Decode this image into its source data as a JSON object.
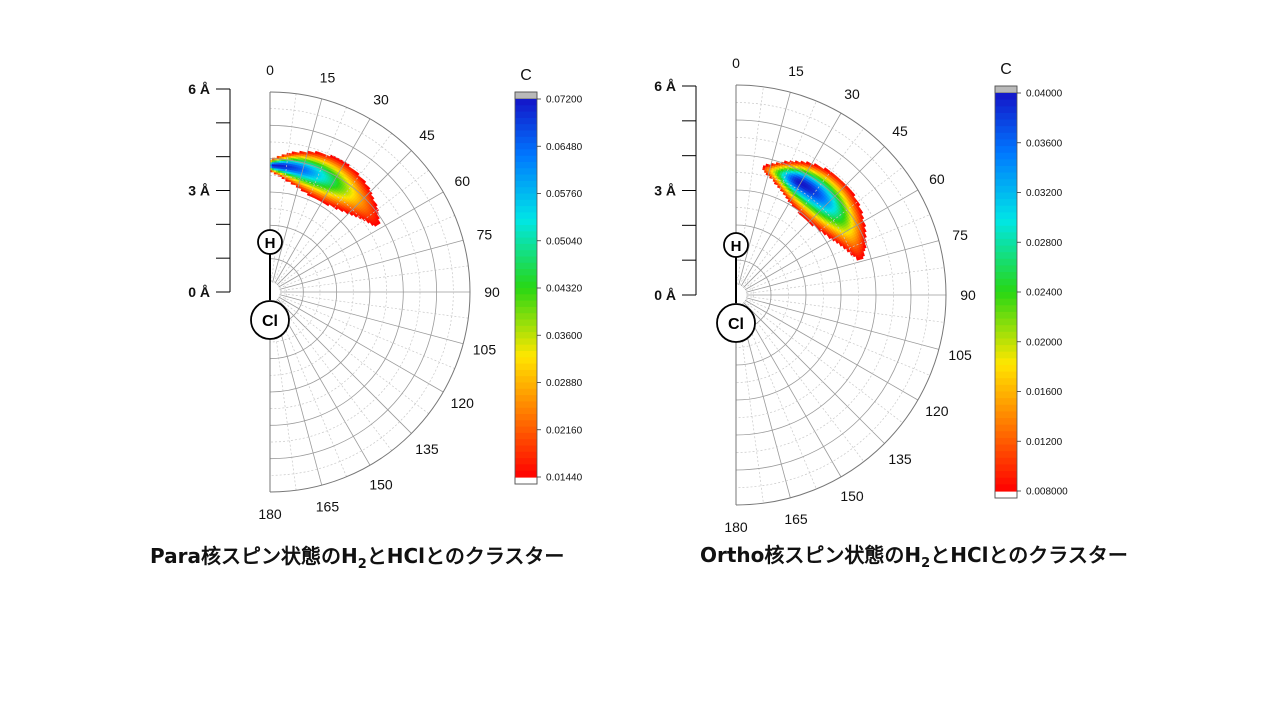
{
  "chart_data": [
    {
      "type": "heatmap",
      "subtype": "polar-contour",
      "caption": {
        "pre": "Para核スピン状態のH",
        "sub": "2",
        "post": "とHClとのクラスター"
      },
      "angle_ticks": [
        "0",
        "15",
        "30",
        "45",
        "60",
        "75",
        "90",
        "105",
        "120",
        "135",
        "150",
        "165",
        "180"
      ],
      "radial_ticks": [
        "6 Å",
        "3 Å",
        "0 Å"
      ],
      "radial_max": 6,
      "molecule": {
        "top_atom": "H",
        "bottom_atom": "Cl"
      },
      "colorbar": {
        "title": "C",
        "ticks": [
          "0.07200",
          "0.06480",
          "0.05760",
          "0.05040",
          "0.04320",
          "0.03600",
          "0.02880",
          "0.02160",
          "0.01440"
        ],
        "min": 0.0144,
        "max": 0.072
      },
      "distribution": {
        "r_center": 3.8,
        "r_width": 0.55,
        "theta_start": 0,
        "theta_end": 68,
        "theta_peak": 0,
        "peak_value": 0.072
      }
    },
    {
      "type": "heatmap",
      "subtype": "polar-contour",
      "caption": {
        "pre": "Ortho核スピン状態のH",
        "sub": "2",
        "post": "とHClとのクラスター"
      },
      "angle_ticks": [
        "0",
        "15",
        "30",
        "45",
        "60",
        "75",
        "90",
        "105",
        "120",
        "135",
        "150",
        "165",
        "180"
      ],
      "radial_ticks": [
        "6 Å",
        "3 Å",
        "0 Å"
      ],
      "radial_max": 6,
      "molecule": {
        "top_atom": "H",
        "bottom_atom": "Cl"
      },
      "colorbar": {
        "title": "C",
        "ticks": [
          "0.04000",
          "0.03600",
          "0.03200",
          "0.02800",
          "0.02400",
          "0.02000",
          "0.01600",
          "0.01200",
          "0.008000"
        ],
        "min": 0.008,
        "max": 0.04
      },
      "distribution": {
        "r_center": 3.7,
        "r_width": 0.55,
        "theta_start": 12,
        "theta_end": 82,
        "theta_peak": 30,
        "peak_value": 0.04
      }
    }
  ]
}
